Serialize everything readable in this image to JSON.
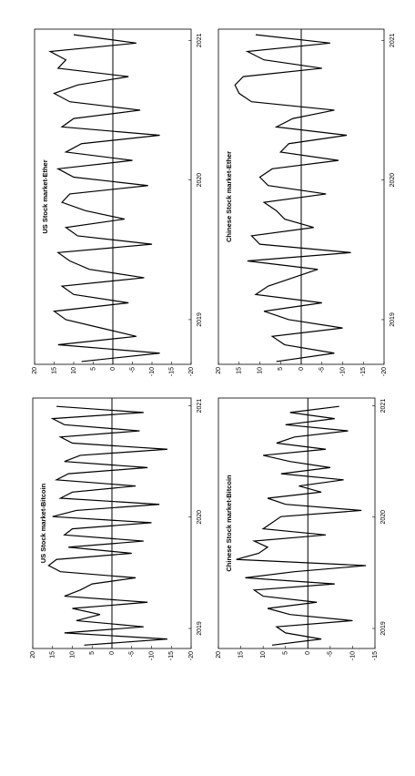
{
  "chart_data": [
    {
      "type": "line",
      "title": "US Stock market-Ether",
      "x": [
        2018.7,
        2018.76,
        2018.82,
        2018.88,
        2018.94,
        2019.0,
        2019.06,
        2019.12,
        2019.18,
        2019.24,
        2019.3,
        2019.36,
        2019.42,
        2019.48,
        2019.54,
        2019.6,
        2019.66,
        2019.72,
        2019.78,
        2019.84,
        2019.9,
        2019.96,
        2020.02,
        2020.08,
        2020.14,
        2020.2,
        2020.26,
        2020.32,
        2020.38,
        2020.44,
        2020.5,
        2020.56,
        2020.62,
        2020.68,
        2020.74,
        2020.8,
        2020.86,
        2020.92,
        2020.98,
        2021.04
      ],
      "values": [
        8,
        -12,
        14,
        -6,
        3,
        12,
        15,
        -4,
        10,
        13,
        -8,
        6,
        11,
        14,
        -10,
        9,
        12,
        -3,
        7,
        13,
        11,
        -9,
        10,
        14,
        -5,
        12,
        8,
        -12,
        13,
        10,
        -7,
        11,
        15,
        9,
        -4,
        14,
        12,
        16,
        -6,
        10
      ],
      "color": "#000000",
      "xlim": [
        2018.68,
        2021.08
      ],
      "xticks": [
        2019,
        2020,
        2021
      ],
      "ylim": [
        -20,
        20
      ],
      "yticks": [
        -20,
        -15,
        -10,
        -5,
        0,
        5,
        10,
        15,
        20
      ],
      "grid": false
    },
    {
      "type": "line",
      "title": "Chinese Stock market-Ether",
      "x": [
        2018.7,
        2018.76,
        2018.82,
        2018.88,
        2018.94,
        2019.0,
        2019.06,
        2019.12,
        2019.18,
        2019.24,
        2019.3,
        2019.36,
        2019.42,
        2019.48,
        2019.54,
        2019.6,
        2019.66,
        2019.72,
        2019.78,
        2019.84,
        2019.9,
        2019.96,
        2020.02,
        2020.08,
        2020.14,
        2020.2,
        2020.26,
        2020.32,
        2020.38,
        2020.44,
        2020.5,
        2020.56,
        2020.62,
        2020.68,
        2020.74,
        2020.8,
        2020.86,
        2020.92,
        2020.98,
        2021.04
      ],
      "values": [
        6,
        -8,
        4,
        7,
        -10,
        3,
        9,
        -5,
        11,
        8,
        2,
        -4,
        13,
        -12,
        10,
        12,
        -3,
        4,
        6,
        9,
        -6,
        8,
        10,
        7,
        -9,
        5,
        3,
        -11,
        6,
        2,
        -8,
        12,
        15,
        16,
        14,
        -5,
        9,
        13,
        -7,
        11
      ],
      "color": "#000000",
      "xlim": [
        2018.68,
        2021.08
      ],
      "xticks": [
        2019,
        2020,
        2021
      ],
      "ylim": [
        -20,
        20
      ],
      "yticks": [
        -20,
        -15,
        -10,
        -5,
        0,
        5,
        10,
        15,
        20
      ],
      "grid": false
    },
    {
      "type": "line",
      "title": "US Stock market-Bitcoin",
      "x": [
        2018.85,
        2018.905,
        2018.96,
        2019.015,
        2019.07,
        2019.125,
        2019.18,
        2019.235,
        2019.29,
        2019.345,
        2019.4,
        2019.455,
        2019.51,
        2019.565,
        2019.62,
        2019.675,
        2019.73,
        2019.785,
        2019.84,
        2019.895,
        2019.95,
        2020.005,
        2020.06,
        2020.115,
        2020.17,
        2020.225,
        2020.28,
        2020.335,
        2020.39,
        2020.445,
        2020.5,
        2020.555,
        2020.61,
        2020.665,
        2020.72,
        2020.775,
        2020.83,
        2020.885,
        2020.94,
        2020.995
      ],
      "values": [
        7,
        -14,
        12,
        -8,
        9,
        3,
        10,
        -9,
        12,
        8,
        5,
        -6,
        13,
        16,
        14,
        -5,
        11,
        -8,
        12,
        10,
        -10,
        15,
        9,
        -12,
        13,
        10,
        -6,
        14,
        11,
        -9,
        12,
        8,
        -14,
        10,
        13,
        -7,
        12,
        15,
        -8,
        14
      ],
      "color": "#000000",
      "xlim": [
        2018.82,
        2021.07
      ],
      "xticks": [
        2019,
        2020,
        2021
      ],
      "ylim": [
        -20,
        20
      ],
      "yticks": [
        -20,
        -15,
        -10,
        -5,
        0,
        5,
        10,
        15,
        20
      ],
      "grid": false
    },
    {
      "type": "line",
      "title": "Chinese Stock market-Bitcoin",
      "x": [
        2018.85,
        2018.905,
        2018.96,
        2019.015,
        2019.07,
        2019.125,
        2019.18,
        2019.235,
        2019.29,
        2019.345,
        2019.4,
        2019.455,
        2019.51,
        2019.565,
        2019.62,
        2019.675,
        2019.73,
        2019.785,
        2019.84,
        2019.895,
        2019.95,
        2020.005,
        2020.06,
        2020.115,
        2020.17,
        2020.225,
        2020.28,
        2020.335,
        2020.39,
        2020.445,
        2020.5,
        2020.555,
        2020.61,
        2020.665,
        2020.72,
        2020.775,
        2020.83,
        2020.885,
        2020.94,
        2020.995
      ],
      "values": [
        8,
        -3,
        5,
        7,
        -10,
        4,
        9,
        -2,
        10,
        12,
        -6,
        14,
        3,
        -13,
        16,
        11,
        9,
        12,
        -4,
        10,
        8,
        6,
        -12,
        5,
        9,
        -3,
        2,
        -8,
        6,
        -5,
        4,
        10,
        -4,
        7,
        3,
        -9,
        5,
        -6,
        4,
        -7
      ],
      "color": "#000000",
      "xlim": [
        2018.82,
        2021.07
      ],
      "xticks": [
        2019,
        2020,
        2021
      ],
      "ylim": [
        -15,
        20
      ],
      "yticks": [
        -15,
        -10,
        -5,
        0,
        5,
        10,
        15,
        20
      ],
      "grid": false
    }
  ]
}
